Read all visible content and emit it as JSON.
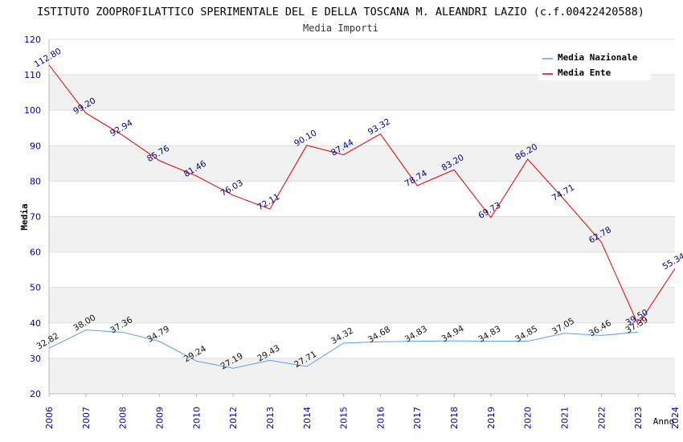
{
  "chart_data": {
    "type": "line",
    "title": "ISTITUTO ZOOPROFILATTICO SPERIMENTALE DEL E DELLA TOSCANA M. ALEANDRI LAZIO (c.f.00422420588)",
    "subtitle": "Media Importi",
    "xlabel": "Anno",
    "ylabel": "Media",
    "ylim": [
      20,
      120
    ],
    "yticks": [
      "20",
      "30",
      "40",
      "50",
      "60",
      "70",
      "80",
      "90",
      "100",
      "110",
      "120"
    ],
    "categories": [
      "2006",
      "2007",
      "2008",
      "2009",
      "2010",
      "2012",
      "2013",
      "2014",
      "2015",
      "2016",
      "2017",
      "2018",
      "2019",
      "2020",
      "2021",
      "2022",
      "2023",
      "2024"
    ],
    "legend_position": "top-right",
    "series": [
      {
        "name": "Media Nazionale",
        "color": "#5aa0e6",
        "values": [
          32.82,
          38.0,
          37.36,
          34.79,
          29.24,
          27.19,
          29.43,
          27.71,
          34.32,
          34.68,
          34.83,
          34.94,
          34.83,
          34.85,
          37.05,
          36.46,
          37.39,
          null
        ],
        "labels": [
          "32.82",
          "38.00",
          "37.36",
          "34.79",
          "29.24",
          "27.19",
          "29.43",
          "27.71",
          "34.32",
          "34.68",
          "34.83",
          "34.94",
          "34.83",
          "34.85",
          "37.05",
          "36.46",
          "37.39",
          ""
        ]
      },
      {
        "name": "Media Ente",
        "color": "#dd0000",
        "values": [
          112.8,
          99.2,
          92.94,
          85.76,
          81.46,
          76.03,
          72.11,
          90.1,
          87.44,
          93.32,
          78.74,
          83.2,
          69.73,
          86.2,
          74.71,
          62.78,
          39.5,
          55.34
        ],
        "labels": [
          "112.80",
          "99.20",
          "92.94",
          "85.76",
          "81.46",
          "76.03",
          "72.11",
          "90.10",
          "87.44",
          "93.32",
          "78.74",
          "83.20",
          "69.73",
          "86.20",
          "74.71",
          "62.78",
          "39.50",
          "55.34"
        ]
      }
    ]
  }
}
